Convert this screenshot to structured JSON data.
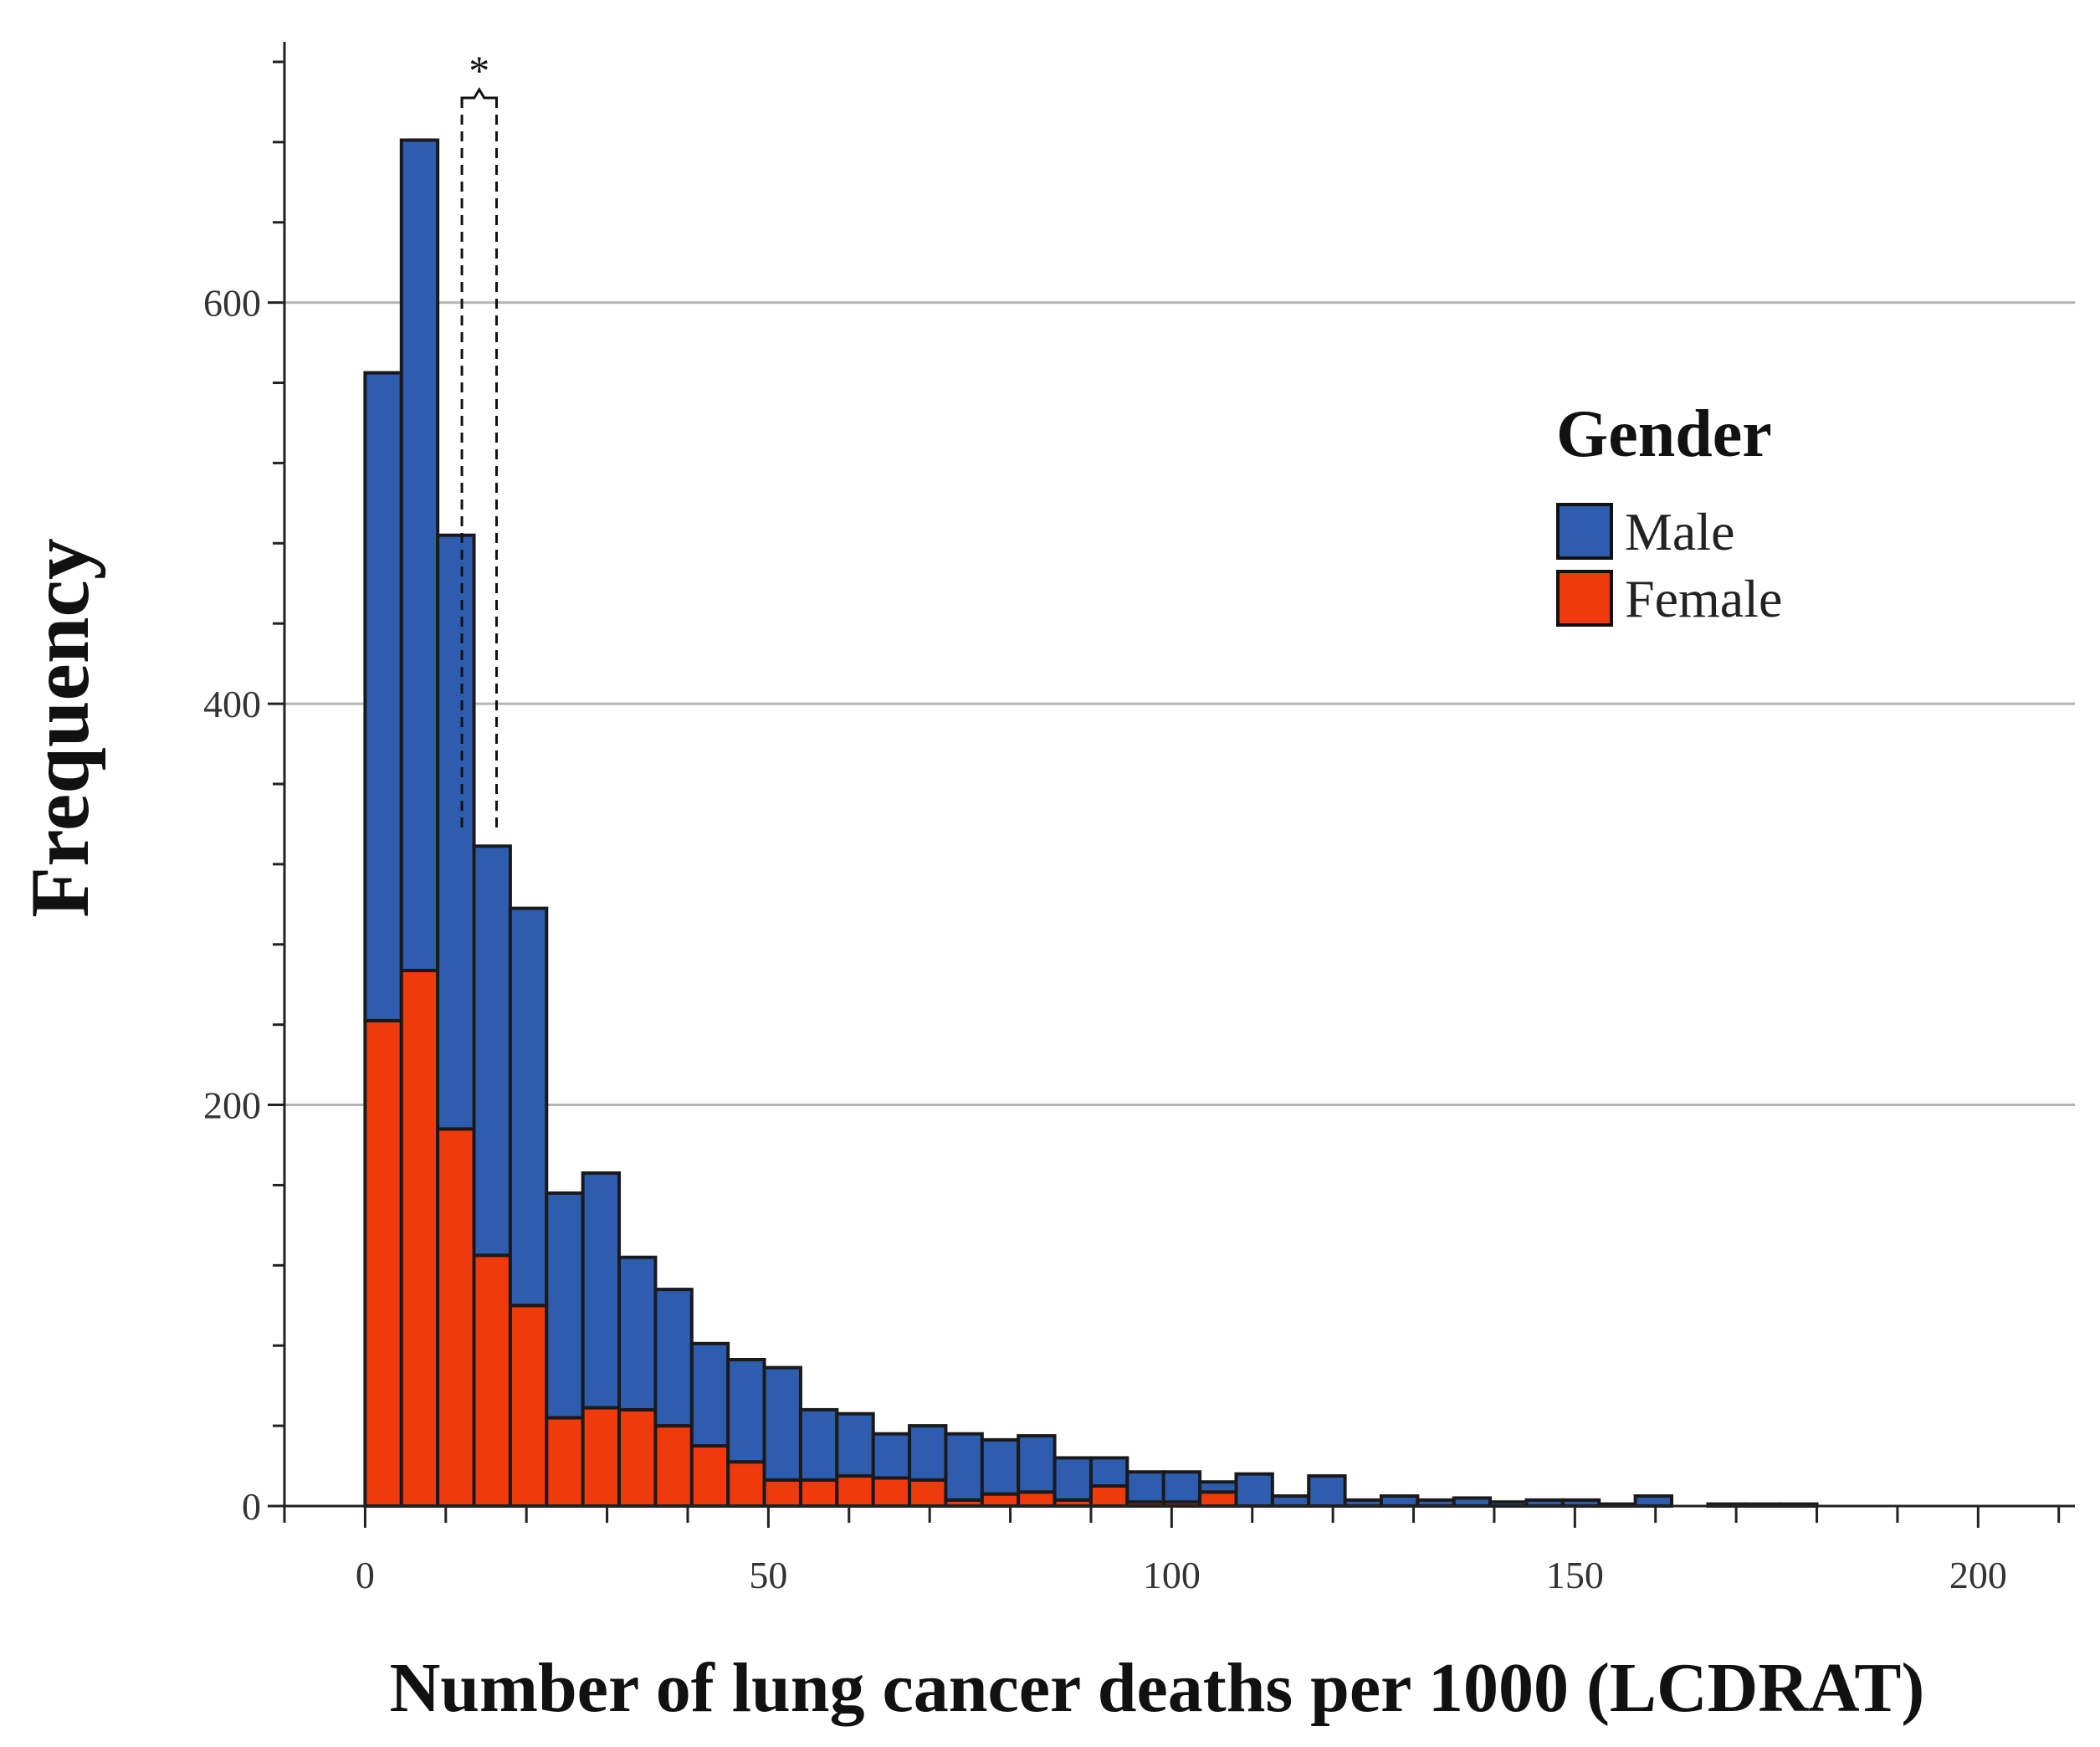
{
  "chart_data": {
    "type": "bar",
    "stacked": true,
    "xlabel": "Number of lung cancer deaths per 1000 (LCDRAT)",
    "ylabel": "Frequency",
    "xlim": [
      -10,
      212
    ],
    "ylim": [
      0,
      730
    ],
    "bin_width": 4.5,
    "x_ticks": [
      0,
      50,
      100,
      150,
      200
    ],
    "y_ticks": [
      0,
      200,
      400,
      600
    ],
    "y_minor_step": 40,
    "x_minor_step": 10,
    "gridlines_y": [
      200,
      400,
      600
    ],
    "legend": {
      "title": "Gender",
      "position": "top-right",
      "entries": [
        {
          "name": "Male",
          "color": "#2E5DB0"
        },
        {
          "name": "Female",
          "color": "#F03A0E"
        }
      ]
    },
    "annotation": {
      "text": "*",
      "x_start": 12.0,
      "x_end": 16.3,
      "y_bottom": 335
    },
    "x": [
      0,
      4.5,
      9,
      13.5,
      18,
      22.5,
      27,
      31.5,
      36,
      40.5,
      45,
      49.5,
      54,
      58.5,
      63,
      67.5,
      72,
      76.5,
      81,
      85.5,
      90,
      94.5,
      99,
      103.5,
      108,
      112.5,
      117,
      121.5,
      126,
      130.5,
      135,
      139.5,
      144,
      148.5,
      153,
      157.5,
      162,
      166.5,
      171,
      175.5,
      180
    ],
    "series": [
      {
        "name": "Female",
        "color": "#F03A0E",
        "values": [
          242,
          267,
          188,
          125,
          100,
          44,
          49,
          48,
          40,
          30,
          22,
          13,
          13,
          15,
          14,
          13,
          3,
          6,
          7,
          3,
          10,
          2,
          2,
          7,
          0,
          0,
          0,
          0,
          0,
          0,
          0,
          0,
          0,
          0,
          0,
          0,
          0,
          0,
          0,
          0,
          0
        ]
      },
      {
        "name": "Male",
        "color": "#2E5DB0",
        "values": [
          323,
          414,
          296,
          204,
          198,
          112,
          117,
          76,
          68,
          51,
          51,
          56,
          35,
          31,
          22,
          27,
          33,
          27,
          28,
          21,
          14,
          15,
          15,
          5,
          16,
          5,
          15,
          3,
          5,
          3,
          4,
          2,
          3,
          3,
          1,
          5,
          0,
          1,
          1,
          1,
          0
        ]
      }
    ]
  }
}
